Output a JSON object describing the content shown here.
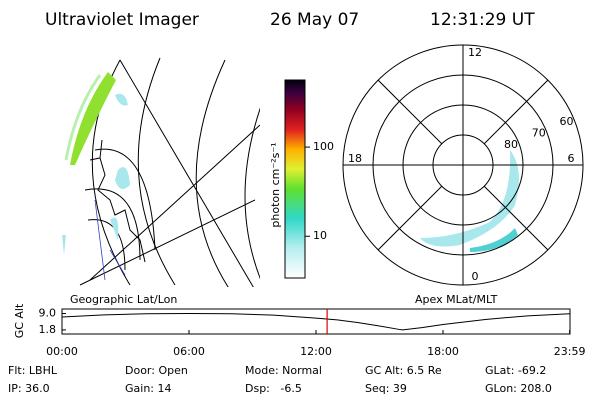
{
  "header": {
    "title": "Ultraviolet Imager",
    "date": "26 May 07",
    "time": "12:31:29 UT"
  },
  "colorbar": {
    "label": "photon cm⁻²s⁻¹",
    "scale": "log",
    "clim": [
      3.4,
      566
    ],
    "ticks": [
      10,
      100
    ]
  },
  "left_panel": {
    "caption": "Geographic Lat/Lon"
  },
  "polar": {
    "caption": "Apex MLat/MLT",
    "rlim": [
      90,
      50
    ],
    "lat_ticks": [
      80,
      70,
      60
    ],
    "mlt_ticks": [
      12,
      6,
      0,
      18
    ]
  },
  "timeline": {
    "ylabel": "GC Alt",
    "xlim": [
      0,
      24
    ],
    "ylim": [
      0,
      11
    ],
    "yticks": [
      {
        "value": 9,
        "label": "9.0"
      },
      {
        "value": 1.8,
        "label": "1.8"
      }
    ],
    "xticks": [
      {
        "value": 0,
        "label": "00:00"
      },
      {
        "value": 6,
        "label": "06:00"
      },
      {
        "value": 12,
        "label": "12:00"
      },
      {
        "value": 18,
        "label": "18:00"
      },
      {
        "value": 23.983,
        "label": "23:59"
      }
    ],
    "x": [
      0,
      2,
      4,
      6,
      8,
      10,
      12,
      13,
      14,
      15,
      16,
      16.1,
      17,
      18,
      20,
      22,
      23.983
    ],
    "y": [
      7.5,
      8.4,
      8.9,
      9.0,
      8.9,
      8.3,
      7.0,
      6.2,
      5.0,
      3.5,
      1.9,
      1.8,
      2.8,
      4.2,
      6.4,
      8.0,
      8.9
    ],
    "marker": 12.525,
    "marker_color": "#e00000"
  },
  "info": [
    [
      "Flt: LBHL",
      "IP: 36.0"
    ],
    [
      "Door: Open",
      "Gain: 14"
    ],
    [
      "Mode: Normal",
      "Dsp:   -6.5"
    ],
    [
      "GC Alt: 6.5 Re",
      "Seq: 39"
    ],
    [
      "GLat: -69.2",
      "GLon: 208.0"
    ]
  ]
}
